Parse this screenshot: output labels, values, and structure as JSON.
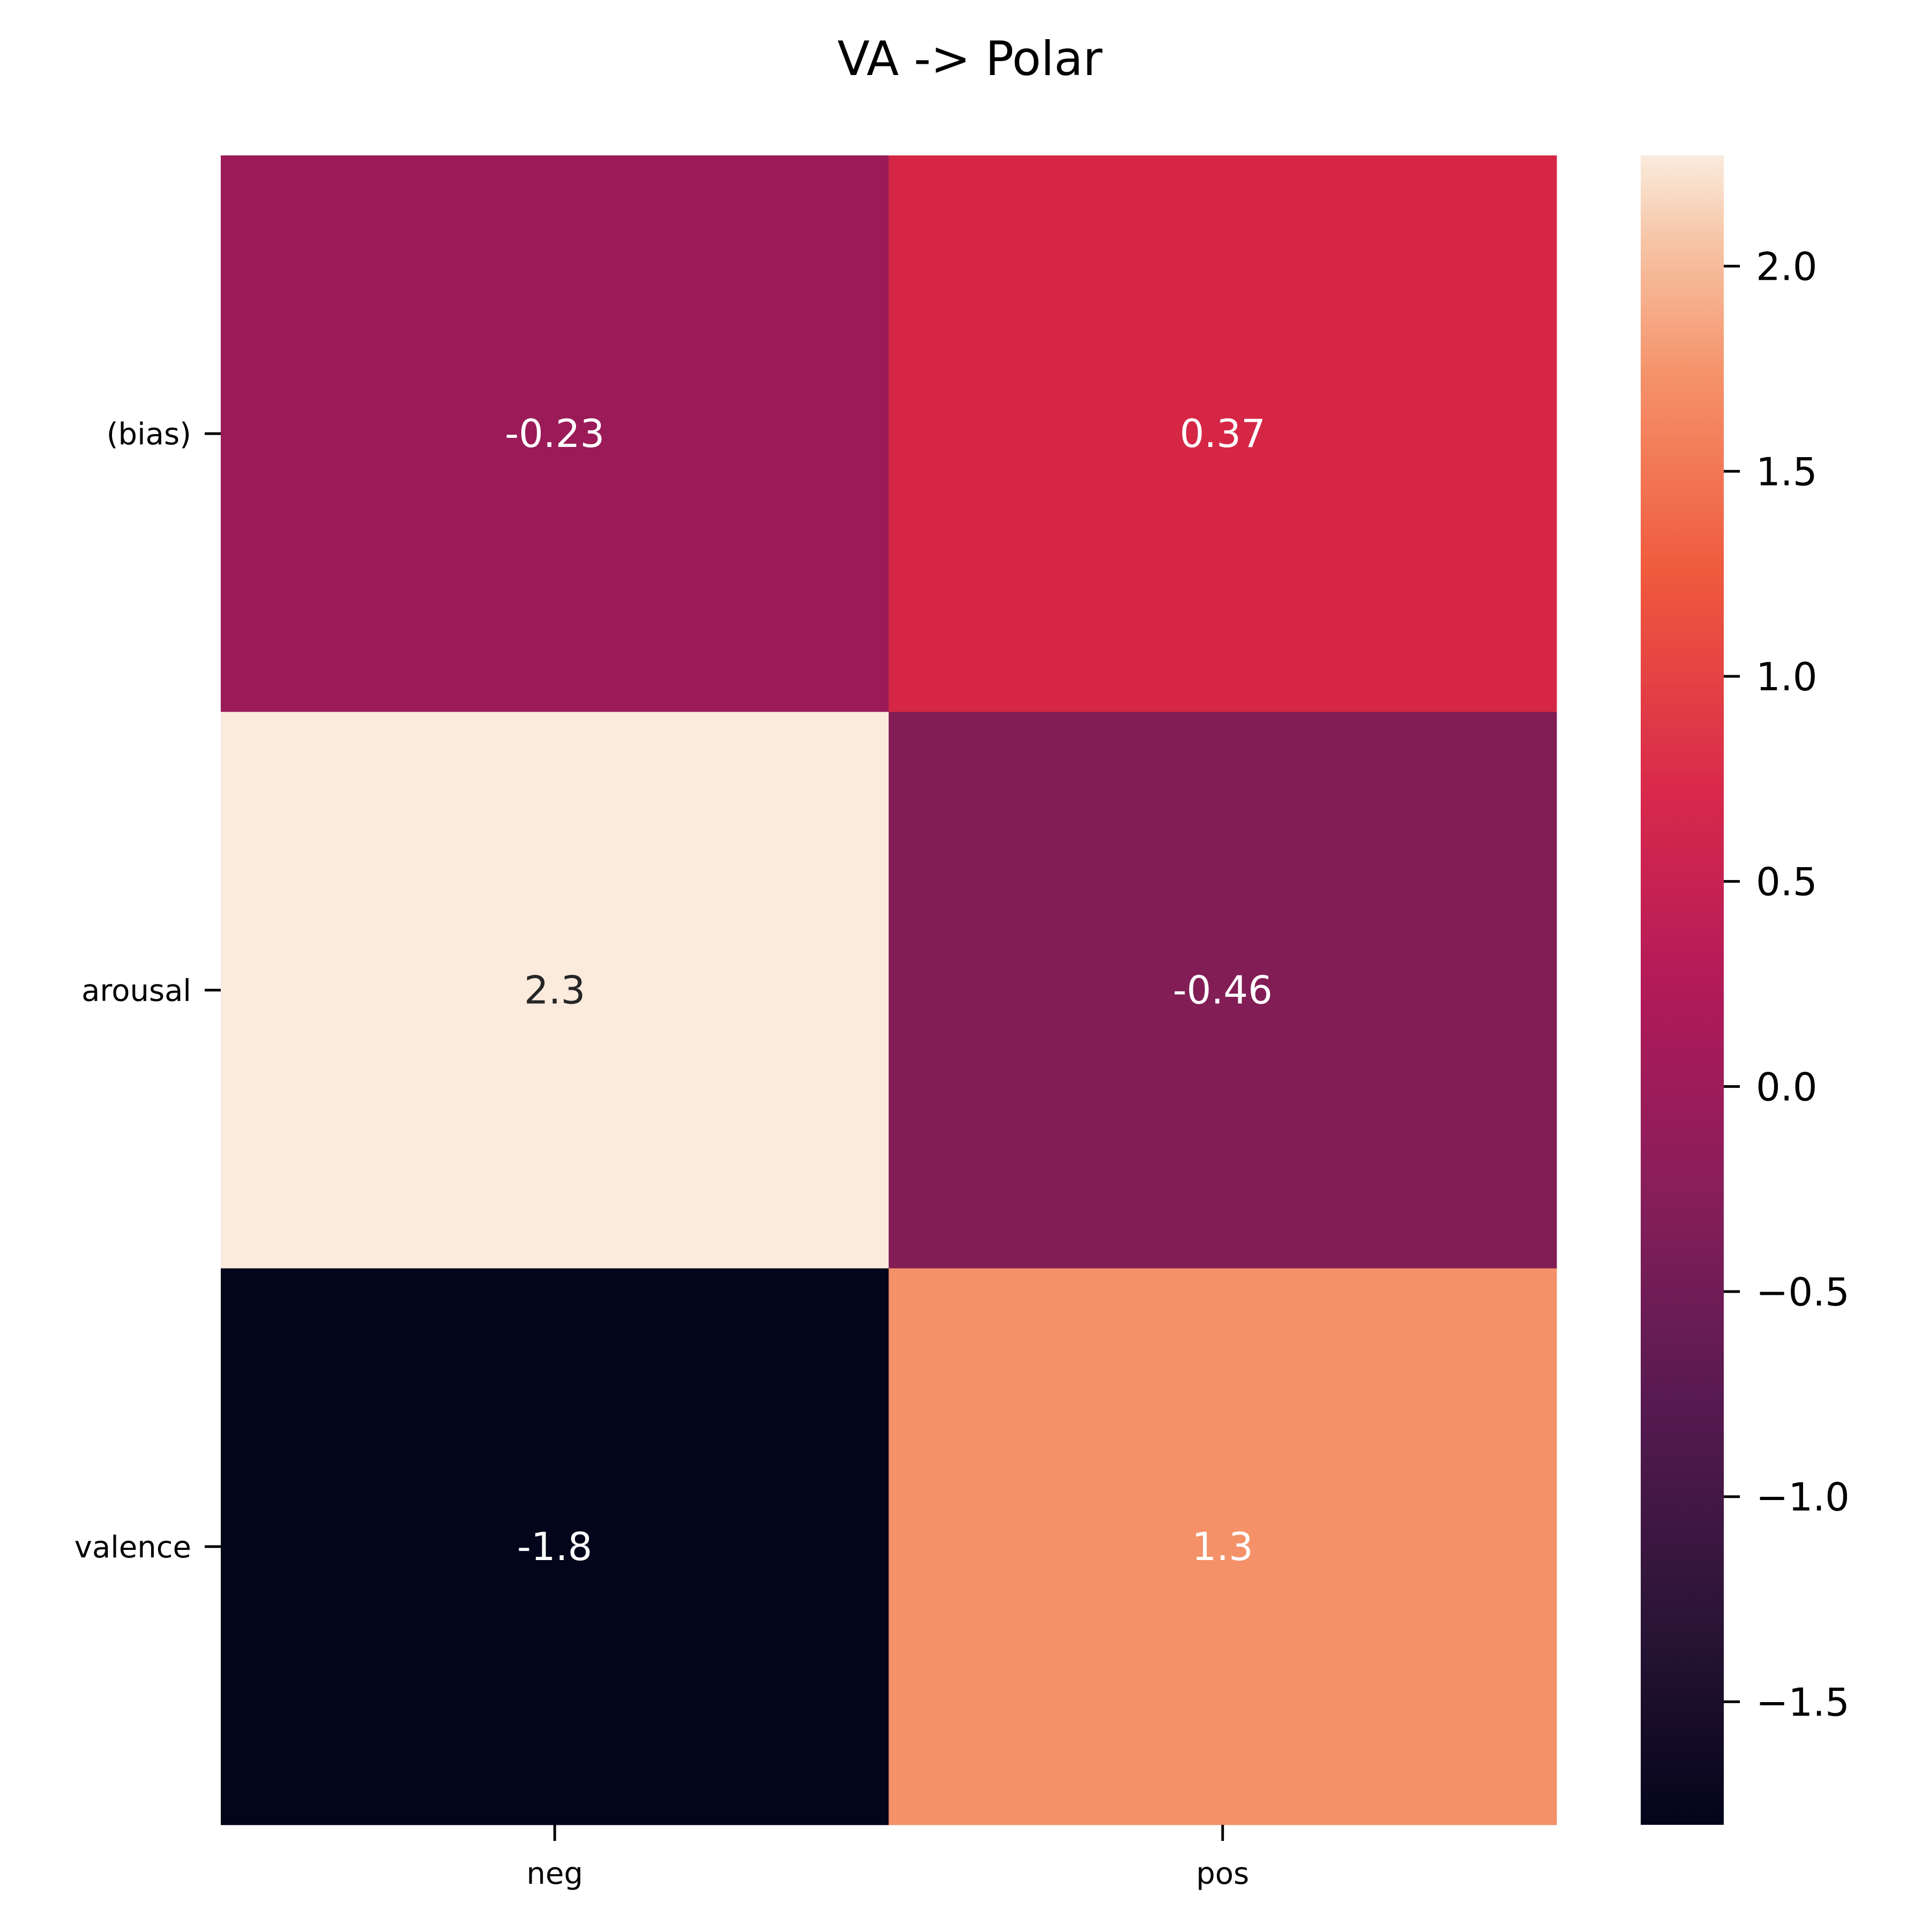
{
  "chart_data": {
    "type": "heatmap",
    "title": "VA -> Polar",
    "xlabel": "",
    "ylabel": "",
    "x_categories": [
      "neg",
      "pos"
    ],
    "y_categories": [
      "(bias)",
      "arousal",
      "valence"
    ],
    "values": [
      [
        -0.23,
        0.37
      ],
      [
        2.3,
        -0.46
      ],
      [
        -1.8,
        1.3
      ]
    ],
    "annotations": [
      [
        "-0.23",
        "0.37"
      ],
      [
        "2.3",
        "-0.46"
      ],
      [
        "-1.8",
        "1.3"
      ]
    ],
    "colorbar": {
      "colormap": "rocket",
      "vmin": -1.8,
      "vmax": 2.27,
      "ticks": [
        -1.5,
        -1.0,
        -0.5,
        0.0,
        0.5,
        1.0,
        1.5,
        2.0
      ],
      "tick_labels": [
        "−1.5",
        "−1.0",
        "−0.5",
        "0.0",
        "0.5",
        "1.0",
        "1.5",
        "2.0"
      ]
    },
    "cell_colors": [
      [
        "#9a1b58",
        "#d52645"
      ],
      [
        "#faebdd",
        "#821d56"
      ],
      [
        "#03051a",
        "#f49168"
      ]
    ],
    "annotation_colors": [
      [
        "#ffffff",
        "#ffffff"
      ],
      [
        "#262626",
        "#ffffff"
      ],
      [
        "#ffffff",
        "#ffffff"
      ]
    ],
    "grid": false,
    "legend": "colorbar-right"
  }
}
